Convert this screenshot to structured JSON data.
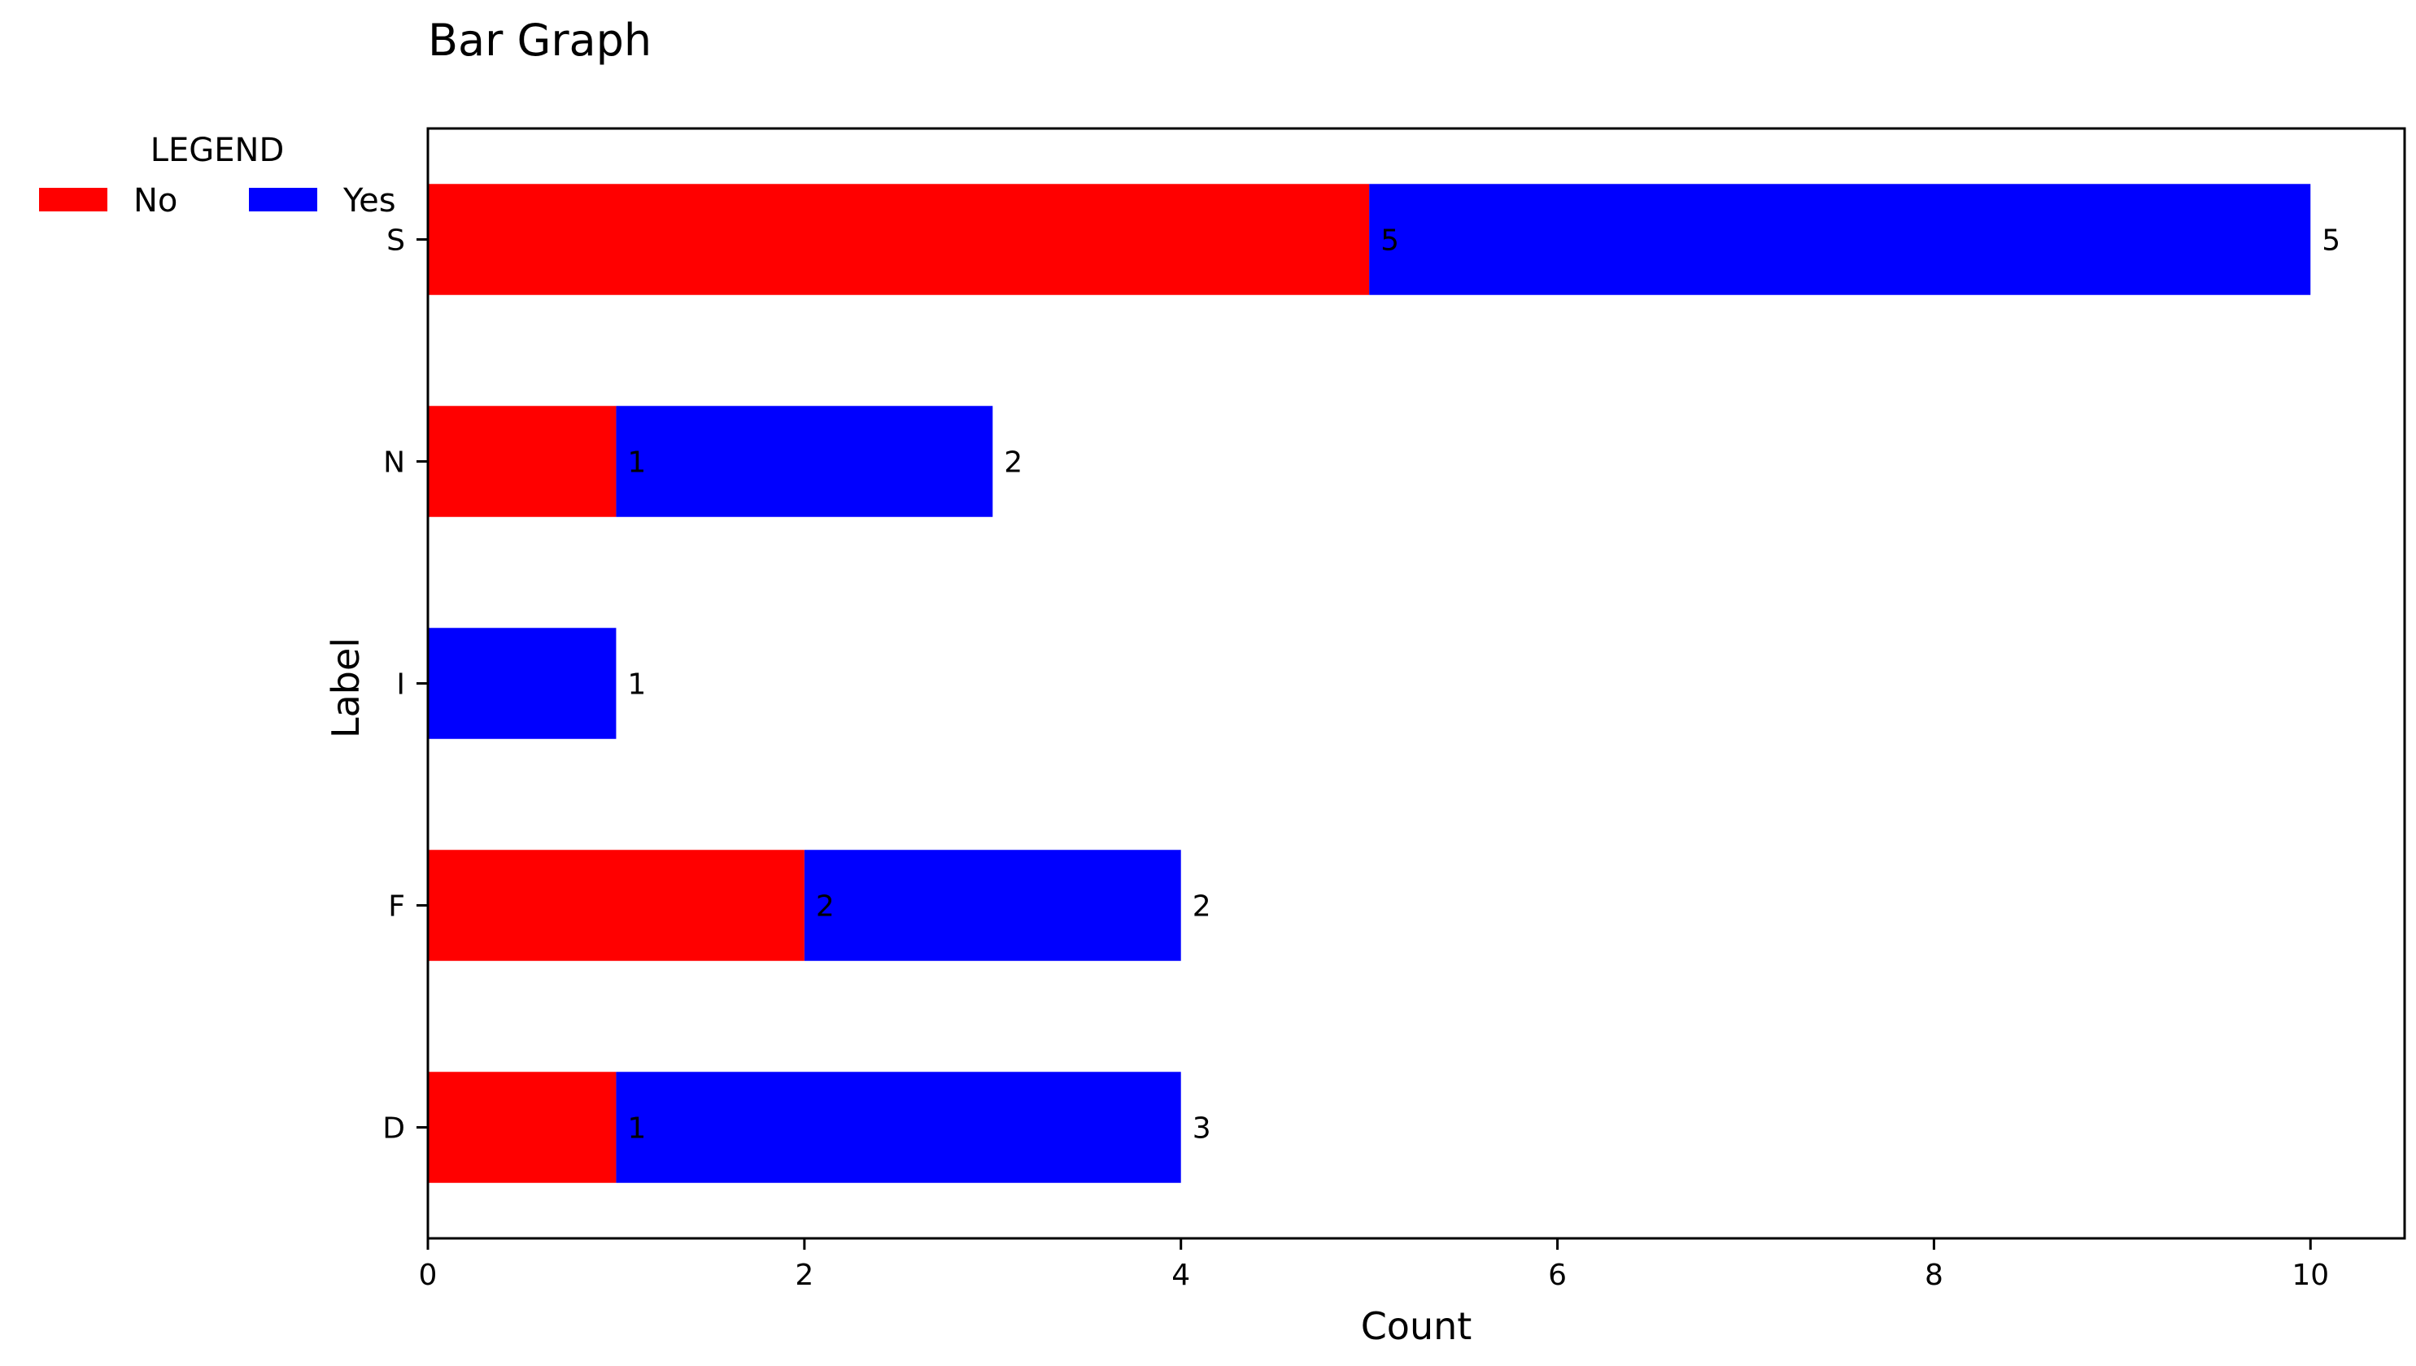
{
  "chart_data": {
    "type": "bar",
    "orientation": "horizontal",
    "stacked": true,
    "title": "Bar Graph",
    "xlabel": "Count",
    "ylabel": "Label",
    "categories": [
      "D",
      "F",
      "I",
      "N",
      "S"
    ],
    "series": [
      {
        "name": "No",
        "values": [
          1,
          2,
          0,
          1,
          5
        ],
        "data_labels": [
          "1",
          "2",
          "",
          "1",
          "5"
        ],
        "color": "#ff0000"
      },
      {
        "name": "Yes",
        "values": [
          3,
          2,
          1,
          2,
          5
        ],
        "data_labels": [
          "3",
          "2",
          "1",
          "2",
          "5"
        ],
        "color": "#0000ff"
      }
    ],
    "xlim": [
      0,
      10.5
    ],
    "xticks": [
      0,
      2,
      4,
      6,
      8,
      10
    ],
    "grid": false,
    "legend": {
      "title": "LEGEND",
      "placement": "upper-left, outside plot",
      "entries": [
        "No",
        "Yes"
      ]
    }
  }
}
